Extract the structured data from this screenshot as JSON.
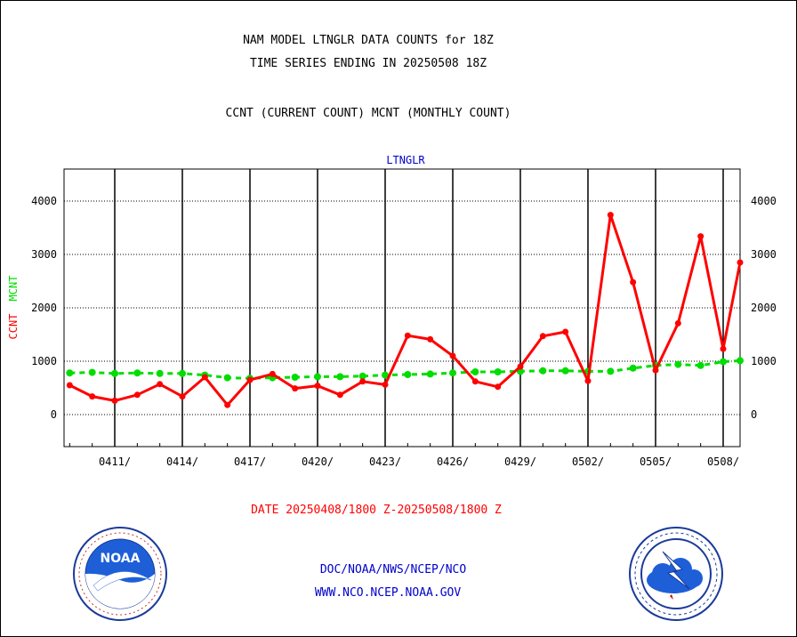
{
  "title_lines": [
    "NAM MODEL LTNGLR DATA COUNTS for 18Z",
    "TIME SERIES ENDING IN 20250508 18Z"
  ],
  "subtitle": "CCNT (CURRENT COUNT) MCNT (MONTHLY COUNT)",
  "date_label": "DATE 20250408/1800 Z-20250508/1800 Z",
  "footer": {
    "line1": "DOC/NOAA/NWS/NCEP/NCO",
    "line2": "WWW.NCO.NCEP.NOAA.GOV"
  },
  "logos": {
    "left": {
      "icon": "noaa-logo",
      "text": "NOAA"
    },
    "right": {
      "icon": "nws-logo",
      "text": "NATIONAL WEATHER SERVICE"
    }
  },
  "colors": {
    "ccnt": "#ff0000",
    "mcnt": "#00dd00",
    "panel_title": "#0000cc",
    "footer": "#0000cc",
    "date": "#ff0000"
  },
  "chart_data": {
    "type": "line",
    "title": "LTNGLR",
    "xlabel": "",
    "ylabel_ccnt": "CCNT",
    "ylabel_mcnt": "MCNT",
    "ylim": [
      -600,
      4600
    ],
    "yticks": [
      0,
      1000,
      2000,
      3000,
      4000
    ],
    "xlim": [
      0,
      30
    ],
    "xticks": [
      {
        "x": 2,
        "label": "0411/"
      },
      {
        "x": 5,
        "label": "0414/"
      },
      {
        "x": 8,
        "label": "0417/"
      },
      {
        "x": 11,
        "label": "0420/"
      },
      {
        "x": 14,
        "label": "0423/"
      },
      {
        "x": 17,
        "label": "0426/"
      },
      {
        "x": 20,
        "label": "0429/"
      },
      {
        "x": 23,
        "label": "0502/"
      },
      {
        "x": 26,
        "label": "0505/"
      },
      {
        "x": 29,
        "label": "0508/"
      }
    ],
    "vlines": [
      2.25,
      5.25,
      8.25,
      11.25,
      14.25,
      17.25,
      20.25,
      23.25,
      26.25,
      29.25
    ],
    "grid": true,
    "series": [
      {
        "name": "CCNT",
        "color": "#ff0000",
        "x": [
          0,
          1,
          2,
          3,
          4,
          5,
          6,
          7,
          8,
          9,
          10,
          11,
          12,
          13,
          14,
          15,
          16,
          17,
          18,
          19,
          20,
          21,
          22,
          23,
          24,
          25,
          26,
          27,
          28,
          29,
          30
        ],
        "values": [
          550,
          340,
          260,
          370,
          570,
          340,
          700,
          180,
          650,
          760,
          490,
          540,
          370,
          620,
          560,
          1480,
          1410,
          1100,
          620,
          520,
          900,
          1470,
          1550,
          630,
          3740,
          2480,
          830,
          1710,
          3340,
          1230,
          2850
        ]
      },
      {
        "name": "MCNT",
        "color": "#00dd00",
        "x": [
          0,
          1,
          2,
          3,
          4,
          5,
          6,
          7,
          8,
          9,
          10,
          11,
          12,
          13,
          14,
          15,
          16,
          17,
          18,
          19,
          20,
          21,
          22,
          23,
          24,
          25,
          26,
          27,
          28,
          29,
          30
        ],
        "values": [
          780,
          790,
          770,
          780,
          770,
          770,
          740,
          690,
          680,
          690,
          700,
          710,
          710,
          720,
          740,
          750,
          760,
          780,
          800,
          800,
          810,
          820,
          820,
          810,
          810,
          870,
          920,
          940,
          920,
          990,
          1010
        ]
      }
    ]
  }
}
